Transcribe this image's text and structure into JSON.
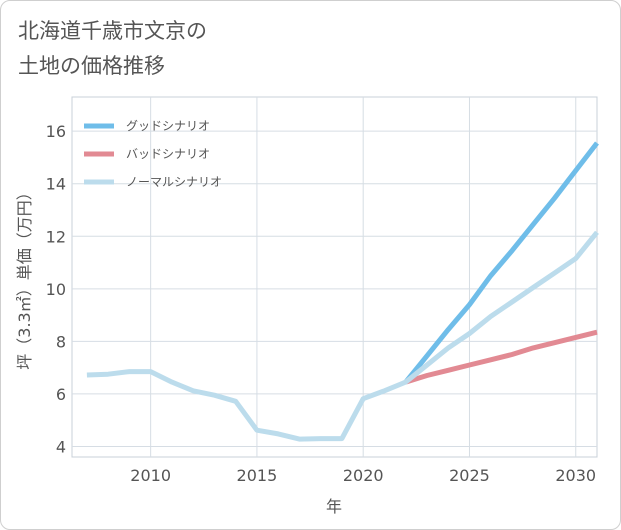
{
  "title_lines": [
    "北海道千歳市文京の",
    "土地の価格推移"
  ],
  "chart_data": {
    "type": "line",
    "xlabel": "年",
    "ylabel": "坪（3.3㎡）単価（万円）",
    "xlim": [
      2006.3,
      2031
    ],
    "ylim": [
      3.6,
      17.3
    ],
    "xticks": [
      2010,
      2015,
      2020,
      2025,
      2030
    ],
    "yticks": [
      4,
      6,
      8,
      10,
      12,
      14,
      16
    ],
    "grid": true,
    "legend_position": "top-left",
    "series": [
      {
        "name": "グッドシナリオ",
        "color": "#6fbde9",
        "x": [
          2022,
          2023,
          2024,
          2025,
          2026,
          2027,
          2028,
          2029,
          2030,
          2031
        ],
        "y": [
          6.45,
          7.45,
          8.45,
          9.4,
          10.5,
          11.45,
          12.45,
          13.45,
          14.5,
          15.55
        ]
      },
      {
        "name": "バッドシナリオ",
        "color": "#e28a93",
        "x": [
          2022,
          2023,
          2024,
          2025,
          2026,
          2027,
          2028,
          2029,
          2030,
          2031
        ],
        "y": [
          6.45,
          6.7,
          6.9,
          7.1,
          7.3,
          7.5,
          7.75,
          7.95,
          8.15,
          8.35
        ]
      },
      {
        "name": "ノーマルシナリオ",
        "color": "#bcdcec",
        "x": [
          2007,
          2008,
          2009,
          2010,
          2011,
          2012,
          2013,
          2014,
          2015,
          2016,
          2017,
          2018,
          2019,
          2020,
          2021,
          2022,
          2023,
          2024,
          2025,
          2026,
          2027,
          2028,
          2029,
          2030,
          2031
        ],
        "y": [
          6.72,
          6.75,
          6.85,
          6.85,
          6.45,
          6.12,
          5.95,
          5.72,
          4.62,
          4.48,
          4.28,
          4.3,
          4.3,
          5.82,
          6.12,
          6.45,
          7.1,
          7.75,
          8.3,
          8.95,
          9.5,
          10.05,
          10.6,
          11.15,
          12.15
        ]
      }
    ]
  }
}
